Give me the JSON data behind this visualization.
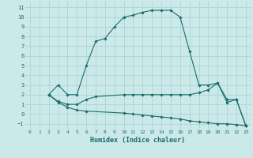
{
  "background_color": "#cce9ea",
  "grid_color": "#aad4d6",
  "line_color": "#1a6b6b",
  "xlabel": "Humidex (Indice chaleur)",
  "xlim": [
    -0.5,
    23.5
  ],
  "ylim": [
    -1.6,
    11.6
  ],
  "xticks": [
    0,
    1,
    2,
    3,
    4,
    5,
    6,
    7,
    8,
    9,
    10,
    11,
    12,
    13,
    14,
    15,
    16,
    17,
    18,
    19,
    20,
    21,
    22,
    23
  ],
  "yticks": [
    -1,
    0,
    1,
    2,
    3,
    4,
    5,
    6,
    7,
    8,
    9,
    10,
    11
  ],
  "series1_x": [
    2,
    3,
    4,
    5,
    6,
    7,
    8,
    9,
    10,
    11,
    12,
    13,
    14,
    15,
    16,
    17,
    18,
    19,
    20,
    21,
    22,
    23
  ],
  "series1_y": [
    2,
    3,
    2,
    2,
    5,
    7.5,
    7.8,
    9,
    10,
    10.2,
    10.5,
    10.7,
    10.7,
    10.7,
    10,
    6.5,
    3,
    3,
    3.2,
    1.5,
    1.5,
    -1.2
  ],
  "series2_x": [
    2,
    3,
    4,
    5,
    6,
    7,
    10,
    11,
    12,
    13,
    14,
    15,
    16,
    17,
    18,
    19,
    20,
    21,
    22,
    23
  ],
  "series2_y": [
    2,
    1.3,
    1.0,
    1.0,
    1.5,
    1.8,
    2.0,
    2.0,
    2.0,
    2.0,
    2.0,
    2.0,
    2.0,
    2.0,
    2.2,
    2.5,
    3.2,
    1.2,
    1.5,
    -1.2
  ],
  "series3_x": [
    2,
    3,
    4,
    5,
    6,
    10,
    11,
    12,
    13,
    14,
    15,
    16,
    17,
    18,
    19,
    20,
    21,
    22,
    23
  ],
  "series3_y": [
    2,
    1.2,
    0.7,
    0.4,
    0.3,
    0.1,
    0.0,
    -0.1,
    -0.2,
    -0.3,
    -0.4,
    -0.5,
    -0.7,
    -0.8,
    -0.9,
    -1.0,
    -1.0,
    -1.1,
    -1.2
  ]
}
